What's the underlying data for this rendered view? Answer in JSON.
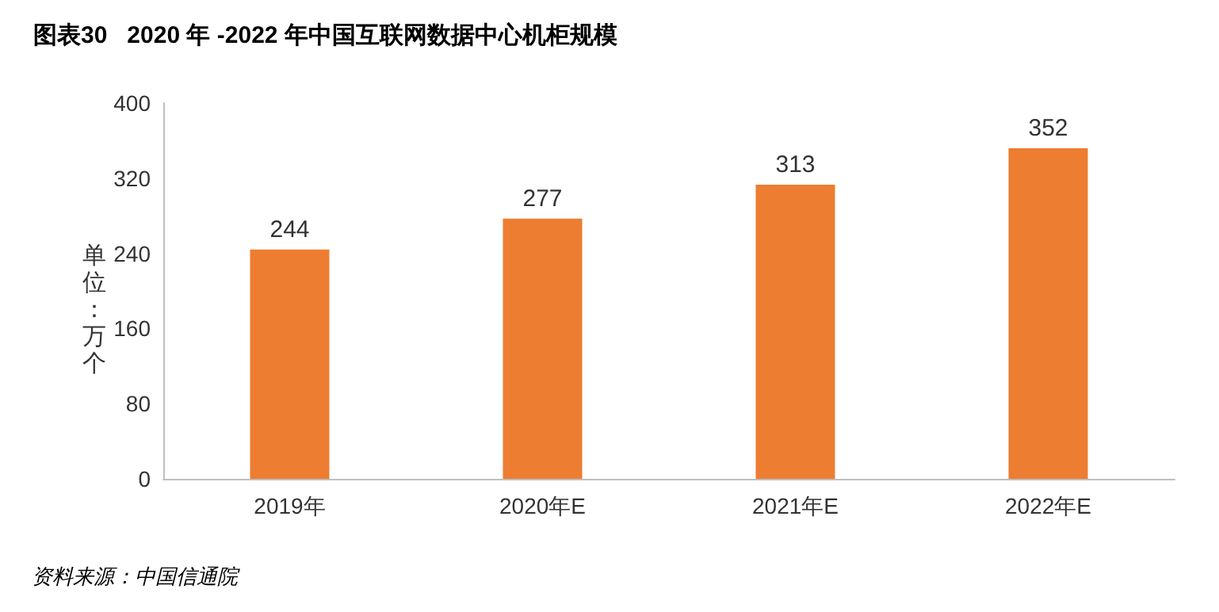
{
  "chart_data": {
    "type": "bar",
    "title": "图表30   2020 年 -2022 年中国互联网数据中心机柜规模",
    "ylabel": "单位：万个",
    "categories": [
      "2019年",
      "2020年E",
      "2021年E",
      "2022年E"
    ],
    "values": [
      244,
      277,
      313,
      352
    ],
    "color": "#ed7d31",
    "ylim": [
      0,
      400
    ],
    "yticks": [
      0,
      80,
      160,
      240,
      320,
      400
    ],
    "grid": false,
    "data_labels": true,
    "annotations": [
      "资料来源：中国信通院"
    ]
  }
}
